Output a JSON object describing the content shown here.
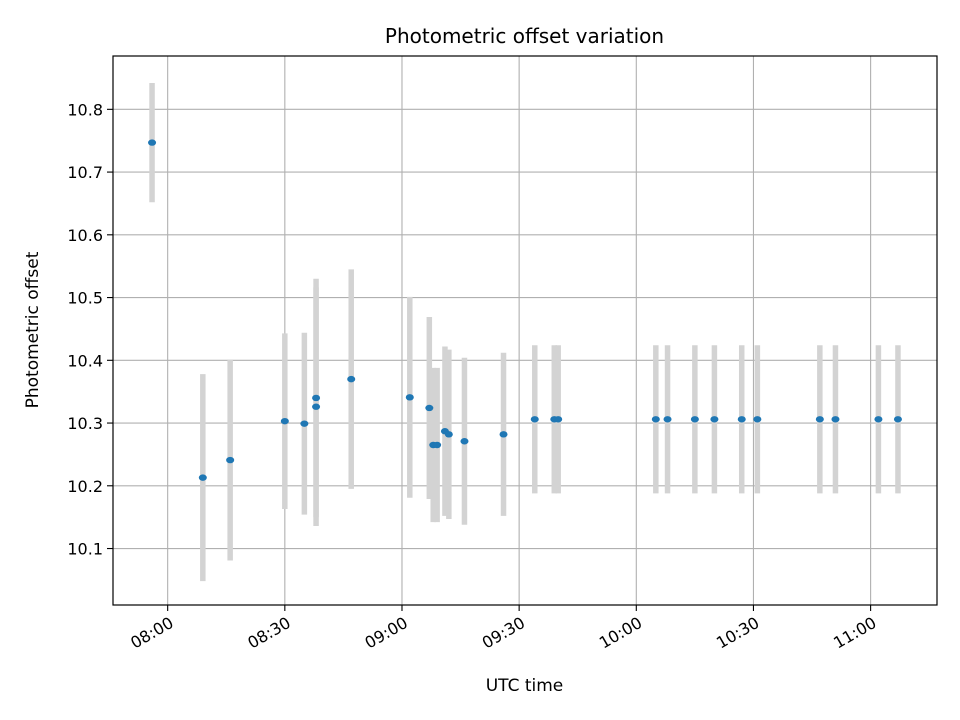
{
  "chart_data": {
    "type": "scatter",
    "title": "Photometric offset variation",
    "xlabel": "UTC time",
    "ylabel": "Photometric offset",
    "x_ticks": [
      "08:00",
      "08:30",
      "09:00",
      "09:30",
      "10:00",
      "10:30",
      "11:00"
    ],
    "y_ticks": [
      "10.1",
      "10.2",
      "10.3",
      "10.4",
      "10.5",
      "10.6",
      "10.7",
      "10.8"
    ],
    "xlim": [
      "07:46",
      "11:17"
    ],
    "ylim": [
      10.01,
      10.885
    ],
    "grid": true,
    "marker_color": "#1f77b4",
    "errorbar_color": "#d3d3d3",
    "points": [
      {
        "t": "07:56",
        "y": 10.747,
        "err": 0.095
      },
      {
        "t": "08:09",
        "y": 10.213,
        "err": 0.165
      },
      {
        "t": "08:16",
        "y": 10.241,
        "err": 0.16
      },
      {
        "t": "08:30",
        "y": 10.303,
        "err": 0.14
      },
      {
        "t": "08:35",
        "y": 10.299,
        "err": 0.145
      },
      {
        "t": "08:38",
        "y": 10.326,
        "err": 0.19
      },
      {
        "t": "08:38",
        "y": 10.34,
        "err": 0.19
      },
      {
        "t": "08:47",
        "y": 10.37,
        "err": 0.175
      },
      {
        "t": "09:02",
        "y": 10.341,
        "err": 0.16
      },
      {
        "t": "09:07",
        "y": 10.324,
        "err": 0.145
      },
      {
        "t": "09:08",
        "y": 10.265,
        "err": 0.123
      },
      {
        "t": "09:09",
        "y": 10.265,
        "err": 0.123
      },
      {
        "t": "09:11",
        "y": 10.287,
        "err": 0.135
      },
      {
        "t": "09:12",
        "y": 10.282,
        "err": 0.135
      },
      {
        "t": "09:16",
        "y": 10.271,
        "err": 0.133
      },
      {
        "t": "09:26",
        "y": 10.282,
        "err": 0.13
      },
      {
        "t": "09:34",
        "y": 10.306,
        "err": 0.118
      },
      {
        "t": "09:39",
        "y": 10.306,
        "err": 0.118
      },
      {
        "t": "09:40",
        "y": 10.306,
        "err": 0.118
      },
      {
        "t": "10:05",
        "y": 10.306,
        "err": 0.118
      },
      {
        "t": "10:08",
        "y": 10.306,
        "err": 0.118
      },
      {
        "t": "10:15",
        "y": 10.306,
        "err": 0.118
      },
      {
        "t": "10:20",
        "y": 10.306,
        "err": 0.118
      },
      {
        "t": "10:27",
        "y": 10.306,
        "err": 0.118
      },
      {
        "t": "10:31",
        "y": 10.306,
        "err": 0.118
      },
      {
        "t": "10:47",
        "y": 10.306,
        "err": 0.118
      },
      {
        "t": "10:51",
        "y": 10.306,
        "err": 0.118
      },
      {
        "t": "11:02",
        "y": 10.306,
        "err": 0.118
      },
      {
        "t": "11:07",
        "y": 10.306,
        "err": 0.118
      }
    ]
  }
}
